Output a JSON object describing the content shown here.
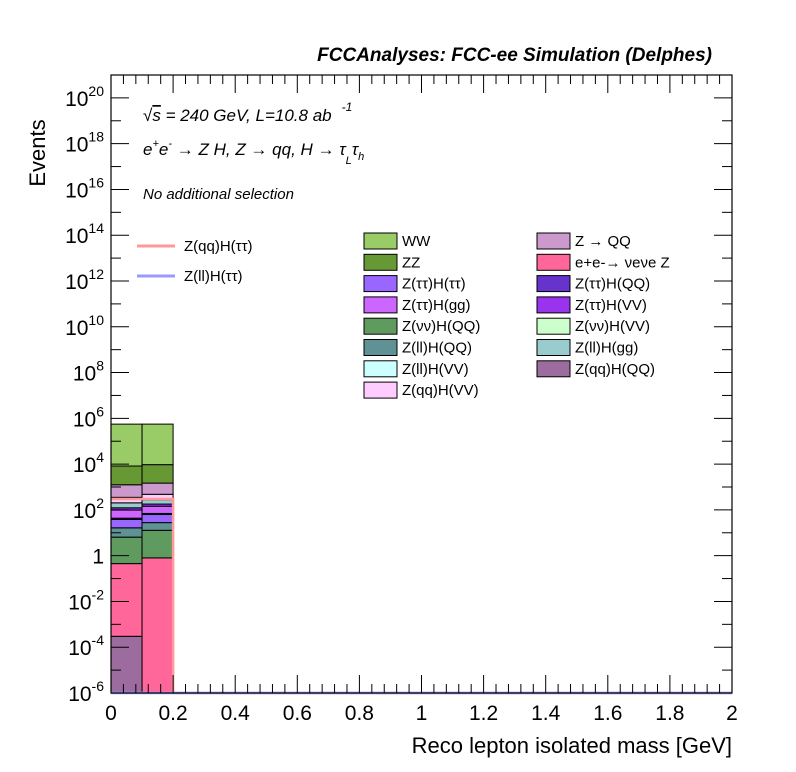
{
  "chart_data": {
    "type": "bar",
    "title": "FCCAnalyses: FCC-ee Simulation (Delphes)",
    "xlabel": "Reco lepton isolated mass [GeV]",
    "ylabel": "Events",
    "xlim": [
      0,
      2
    ],
    "ylim": [
      1e-06,
      1e+21
    ],
    "yscale": "log",
    "stacked": true,
    "annotations": [
      {
        "id": "energy",
        "text": "√s = 240 GeV, L=10.8 ab -1"
      },
      {
        "id": "process",
        "text": "e+e- → Z H, Z → qq, H → τ_L τ_h"
      },
      {
        "id": "selection",
        "text": "No additional selection"
      }
    ],
    "x_ticks": [
      "0",
      "0.2",
      "0.4",
      "0.6",
      "0.8",
      "1",
      "1.2",
      "1.4",
      "1.6",
      "1.8",
      "2"
    ],
    "y_ticks": [
      {
        "value": 1e-06,
        "base": "10",
        "exp": "-6"
      },
      {
        "value": 0.0001,
        "base": "10",
        "exp": "-4"
      },
      {
        "value": 0.01,
        "base": "10",
        "exp": "-2"
      },
      {
        "value": 1,
        "base": "1",
        "exp": ""
      },
      {
        "value": 100.0,
        "base": "10",
        "exp": "2"
      },
      {
        "value": 10000.0,
        "base": "10",
        "exp": "4"
      },
      {
        "value": 1000000.0,
        "base": "10",
        "exp": "6"
      },
      {
        "value": 100000000.0,
        "base": "10",
        "exp": "8"
      },
      {
        "value": 10000000000.0,
        "base": "10",
        "exp": "10"
      },
      {
        "value": 1000000000000.0,
        "base": "10",
        "exp": "12"
      },
      {
        "value": 100000000000000.0,
        "base": "10",
        "exp": "14"
      },
      {
        "value": 1e+16,
        "base": "10",
        "exp": "16"
      },
      {
        "value": 1e+18,
        "base": "10",
        "exp": "18"
      },
      {
        "value": 1e+20,
        "base": "10",
        "exp": "20"
      }
    ],
    "bins": [
      [
        0,
        0.1
      ],
      [
        0.1,
        0.2
      ]
    ],
    "stack": [
      {
        "name": "Z(qq)H(QQ)",
        "color": "#9b6c9d",
        "values": [
          0.0003,
          0
        ]
      },
      {
        "name": "e+e- → νeνe Z",
        "color": "#ff6699",
        "values": [
          0.45,
          0.8
        ]
      },
      {
        "name": "Z(νν)H(QQ)",
        "color": "#5f9a5f",
        "values": [
          6,
          12
        ]
      },
      {
        "name": "Z(ll)H(QQ)",
        "color": "#5f9295",
        "values": [
          10,
          15
        ]
      },
      {
        "name": "Z(ττ)H(ττ)",
        "color": "#9966ff",
        "values": [
          22,
          35
        ]
      },
      {
        "name": "Z(ττ)H(QQ)",
        "color": "#6633cc",
        "values": [
          5,
          7
        ]
      },
      {
        "name": "Z(ττ)H(gg)",
        "color": "#cc66ff",
        "values": [
          55,
          75
        ]
      },
      {
        "name": "Z(ττ)H(VV)",
        "color": "#9933ee",
        "values": [
          25,
          35
        ]
      },
      {
        "name": "Z(ll)H(gg)",
        "color": "#99cccc",
        "values": [
          80,
          100
        ]
      },
      {
        "name": "Z(qq)H(VV)",
        "color": "#ffccff",
        "values": [
          150,
          200
        ]
      },
      {
        "name": "Z → QQ",
        "color": "#cc99cc",
        "values": [
          900,
          1000
        ]
      },
      {
        "name": "ZZ",
        "color": "#669933",
        "values": [
          7000,
          8000
        ]
      },
      {
        "name": "WW",
        "color": "#99cc66",
        "values": [
          550000,
          550000
        ]
      }
    ],
    "signal_lines": [
      {
        "name": "Z(qq)H(ττ)",
        "color": "#ff9999",
        "values": [
          300,
          300
        ]
      },
      {
        "name": "Z(ll)H(ττ)",
        "color": "#9999ff",
        "values": [
          0,
          0
        ]
      }
    ],
    "legend": {
      "placement": "upper-right",
      "lines": [
        {
          "label": "Z(qq)H(ττ)",
          "color": "#ff9999"
        },
        {
          "label": "Z(ll)H(ττ)",
          "color": "#9999ff"
        }
      ],
      "col1": [
        {
          "label": "WW",
          "color": "#99cc66"
        },
        {
          "label": "ZZ",
          "color": "#669933"
        },
        {
          "label": "Z(ττ)H(ττ)",
          "color": "#9966ff"
        },
        {
          "label": "Z(ττ)H(gg)",
          "color": "#cc66ff"
        },
        {
          "label": "Z(νν)H(QQ)",
          "color": "#5f9a5f"
        },
        {
          "label": "Z(ll)H(QQ)",
          "color": "#5f9295"
        },
        {
          "label": "Z(ll)H(VV)",
          "color": "#ccffff"
        },
        {
          "label": "Z(qq)H(VV)",
          "color": "#ffccff"
        }
      ],
      "col2": [
        {
          "label": "Z → QQ",
          "color": "#cc99cc"
        },
        {
          "label": "e+e-→ νeνe Z",
          "color": "#ff6699"
        },
        {
          "label": "Z(ττ)H(QQ)",
          "color": "#6633cc"
        },
        {
          "label": "Z(ττ)H(VV)",
          "color": "#9933ee"
        },
        {
          "label": "Z(νν)H(VV)",
          "color": "#ccffcc"
        },
        {
          "label": "Z(ll)H(gg)",
          "color": "#99cccc"
        },
        {
          "label": "Z(qq)H(QQ)",
          "color": "#9b6c9d"
        }
      ]
    }
  }
}
